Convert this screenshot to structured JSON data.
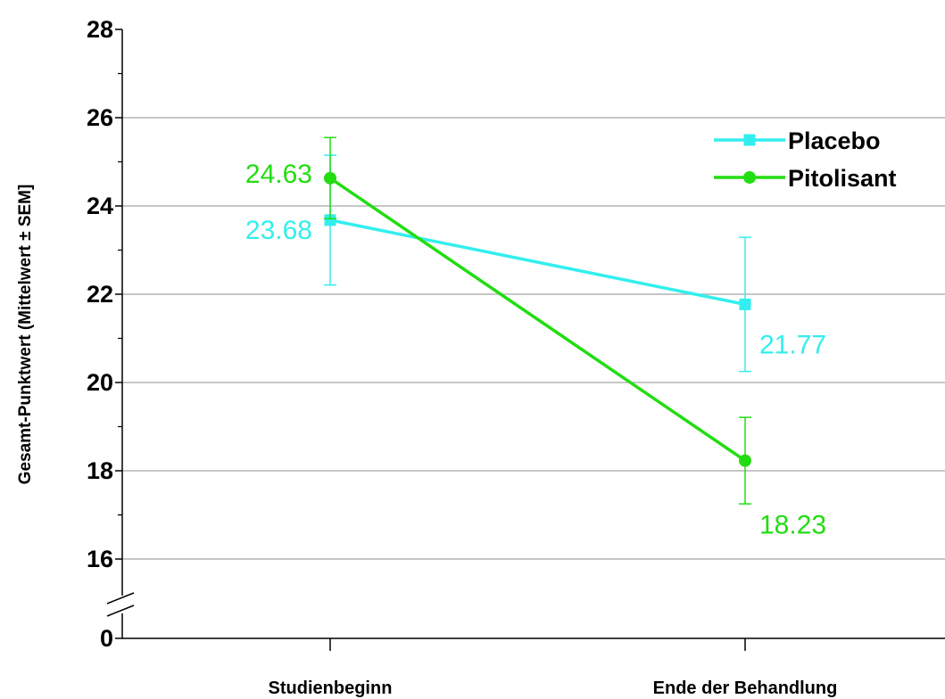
{
  "chart_data": {
    "type": "line",
    "categories": [
      "Studienbeginn",
      "Ende der Behandlung"
    ],
    "ylabel": "Gesamt-Punktwert (Mittelwert ± SEM]",
    "yticks": [
      0,
      16,
      18,
      20,
      22,
      24,
      26,
      28
    ],
    "ylim": [
      15,
      28
    ],
    "axis_break": true,
    "grid": true,
    "legend_position": "top-right",
    "series": [
      {
        "name": "Placebo",
        "color": "#33eeee",
        "marker": "square",
        "values": [
          23.68,
          21.77
        ],
        "errors": [
          1.47,
          1.52
        ],
        "labels": [
          "23.68",
          "21.77"
        ]
      },
      {
        "name": "Pitolisant",
        "color": "#22dd11",
        "marker": "circle",
        "values": [
          24.63,
          18.23
        ],
        "errors": [
          0.92,
          0.98
        ],
        "labels": [
          "24.63",
          "18.23"
        ]
      }
    ]
  }
}
